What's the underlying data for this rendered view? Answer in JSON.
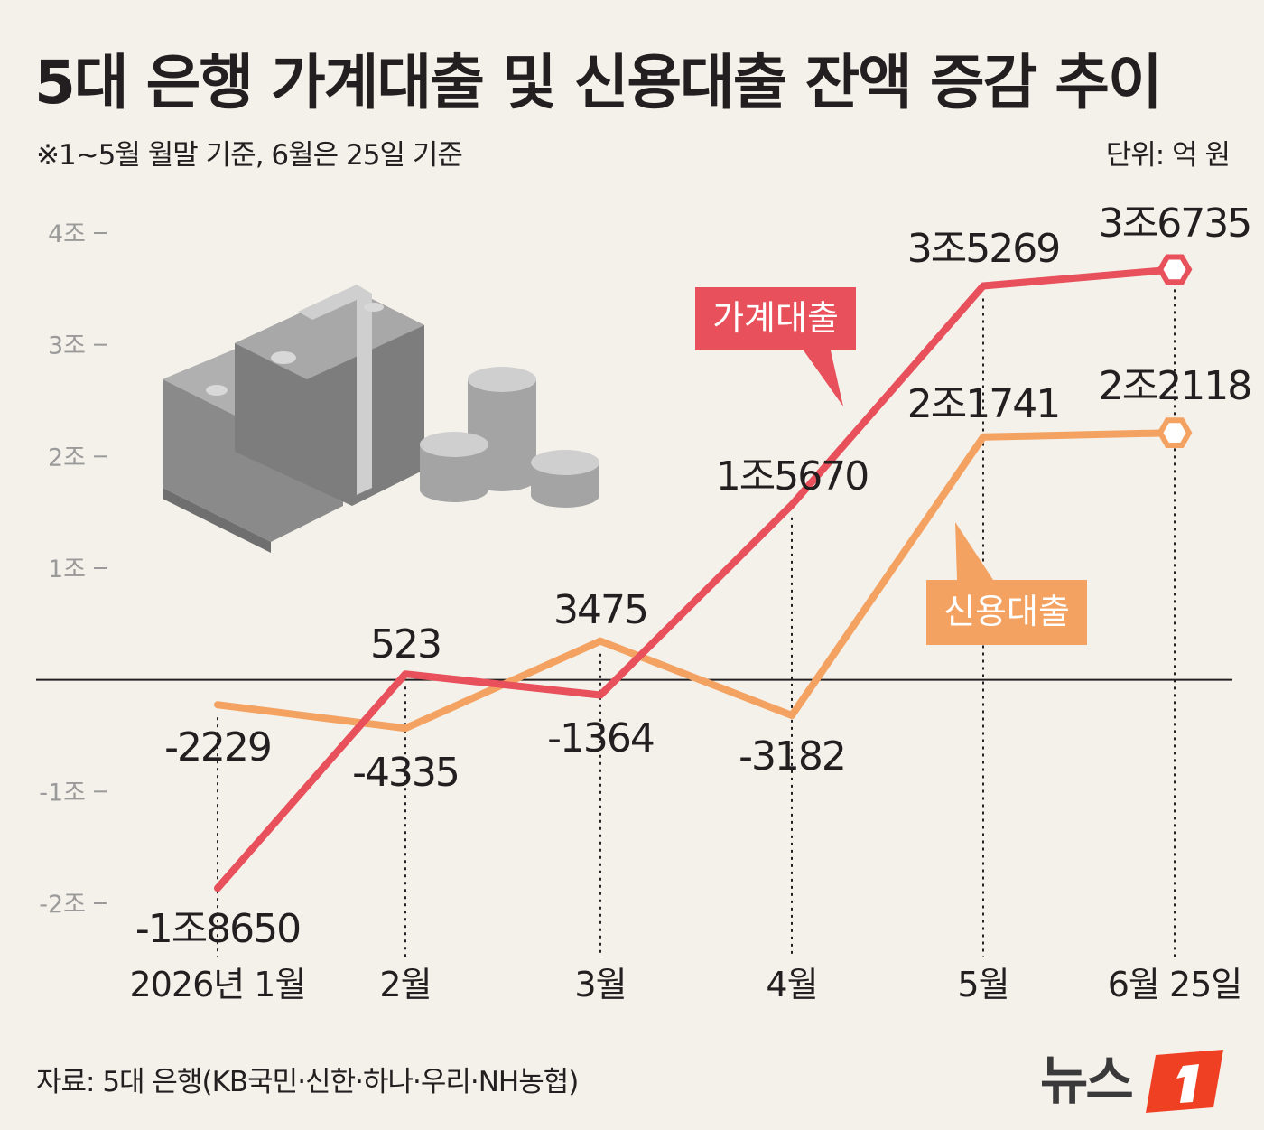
{
  "title": "5대 은행 가계대출 및 신용대출 잔액 증감 추이",
  "subtitle": "※1~5월 월말 기준, 6월은 25일 기준",
  "unit": "단위: 억 원",
  "source": "자료: 5대 은행(KB국민·신한·하나·우리·NH농협)",
  "logo_text": "뉴스1",
  "colors": {
    "household": "#e8505b",
    "credit": "#f4a261",
    "axis": "#231f20",
    "tick": "#9a9a9a",
    "background": "#f4f1ea"
  },
  "chart_data": {
    "type": "line",
    "title": "5대 은행 가계대출 및 신용대출 잔액 증감 추이",
    "categories": [
      "2026년 1월",
      "2월",
      "3월",
      "4월",
      "5월",
      "6월 25일"
    ],
    "ylabel": "",
    "unit": "억 원",
    "ylim": [
      -20000,
      40000
    ],
    "yticks": [
      {
        "value": 40000,
        "label": "4조"
      },
      {
        "value": 30000,
        "label": "3조"
      },
      {
        "value": 20000,
        "label": "2조"
      },
      {
        "value": 10000,
        "label": "1조"
      },
      {
        "value": -10000,
        "label": "-1조"
      },
      {
        "value": -20000,
        "label": "-2조"
      }
    ],
    "grid": false,
    "series": [
      {
        "name": "가계대출",
        "values": [
          -18650,
          523,
          -1364,
          15670,
          35269,
          36735
        ],
        "labels": [
          "-1조8650",
          "523",
          "-1364",
          "1조5670",
          "3조5269",
          "3조6735"
        ]
      },
      {
        "name": "신용대출",
        "values": [
          -2229,
          -4335,
          3475,
          -3182,
          21741,
          22118
        ],
        "labels": [
          "-2229",
          "-4335",
          "3475",
          "-3182",
          "2조1741",
          "2조2118"
        ]
      }
    ]
  }
}
